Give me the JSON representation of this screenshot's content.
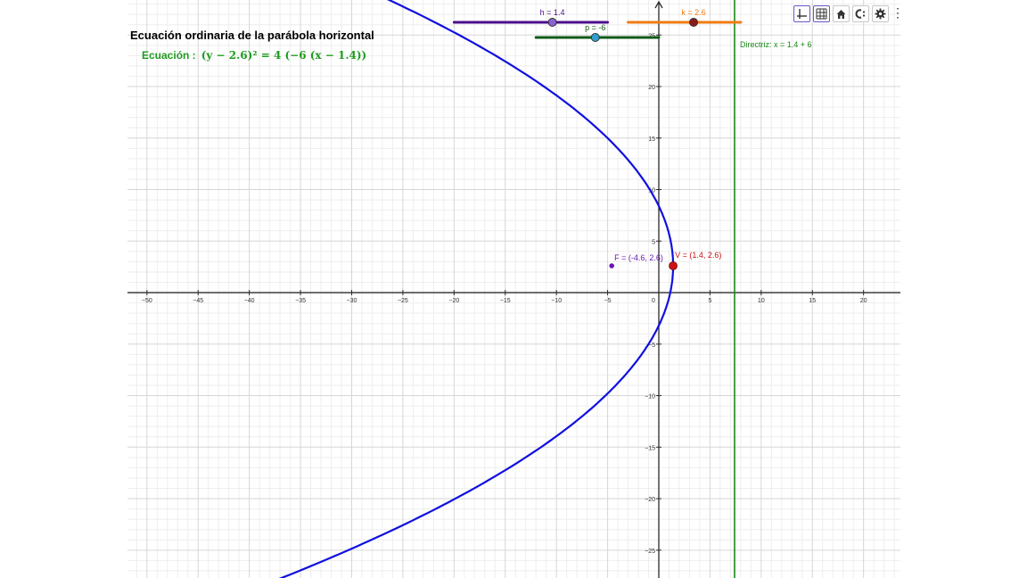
{
  "title": "Ecuación ordinaria de la parábola horizontal",
  "equation": {
    "label": "Ecuación :",
    "text": "(y − 2.6)² = 4 (−6 (x − 1.4))"
  },
  "sliders": [
    {
      "name": "h",
      "label": "h = 1.4",
      "value": 1.4,
      "min": -20,
      "max": -5,
      "color": "#4b0f8c"
    },
    {
      "name": "p",
      "label": "p = -6",
      "value": -6,
      "min": -12,
      "max": 0,
      "color": "#0f5a15"
    },
    {
      "name": "k",
      "label": "k = 2.6",
      "value": 2.6,
      "min": -3,
      "max": 8,
      "color": "#f07b14"
    }
  ],
  "points": [
    {
      "label": "V = (1.4, 2.6)",
      "x": 1.4,
      "y": 2.6,
      "color": "#cc1313"
    },
    {
      "label": "F = (-4.6, 2.6)",
      "x": -4.6,
      "y": 2.6,
      "color": "#6a17b3"
    }
  ],
  "directrix": {
    "label": "Directriz: x = 1.4 + 6",
    "x": 7.4,
    "color": "#1a8a1a"
  },
  "parabola": {
    "h": 1.4,
    "k": 2.6,
    "p": -6,
    "color": "#1010e0"
  },
  "axes": {
    "x_ticks": [
      -50,
      -45,
      -40,
      -35,
      -30,
      -25,
      -20,
      -15,
      -10,
      -5,
      0,
      5,
      10,
      15,
      20
    ],
    "y_ticks": [
      25,
      20,
      15,
      10,
      5,
      -5,
      -10,
      -15,
      -20,
      -25
    ],
    "x_range": [
      -51.9,
      23.6
    ],
    "y_range": [
      -27.7,
      28.4
    ],
    "grid": true
  },
  "colors": {
    "grid_major": "#d6d6d6",
    "grid_minor": "#eeeeee",
    "axis": "#2b2b2b",
    "title": "#000000",
    "equation": "#1f9b1f"
  },
  "toolbar": [
    {
      "name": "axes-toggle-icon",
      "active": true
    },
    {
      "name": "grid-toggle-icon",
      "active": true
    },
    {
      "name": "home-icon",
      "active": false
    },
    {
      "name": "graphing-style-icon",
      "active": false
    },
    {
      "name": "settings-icon",
      "active": false
    }
  ],
  "menu": {
    "glyph": "⋮"
  }
}
